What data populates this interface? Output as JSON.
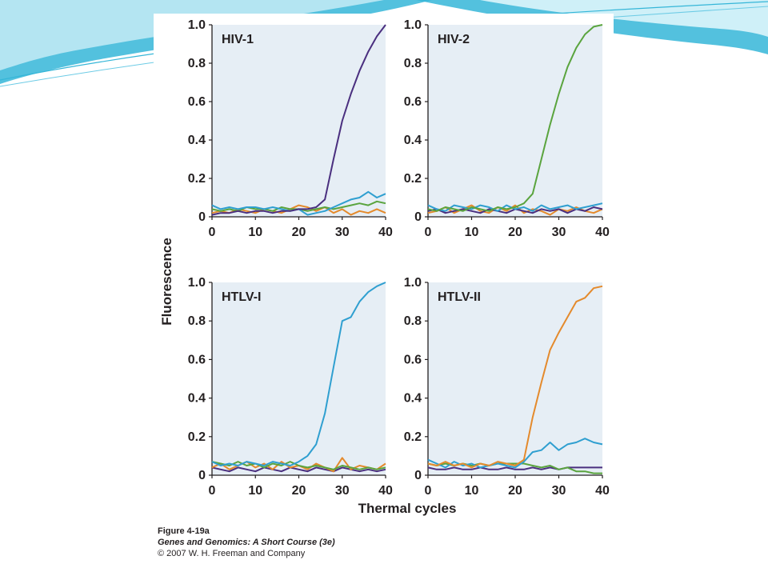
{
  "slide": {
    "caption": {
      "figure": "Figure 4-19a",
      "book": "Genes and Genomics: A Short Course (3e)",
      "copyright": "© 2007 W. H. Freeman and Company"
    }
  },
  "colors": {
    "panel_bg": "#e6eef5",
    "purple": "#4a2f7f",
    "green": "#5aa43e",
    "blue": "#2f9fd0",
    "orange": "#e48a2c",
    "deco_teal": "#35b6d8"
  },
  "chart_data": [
    {
      "type": "line",
      "title": "HIV-1",
      "xlabel": "Thermal cycles",
      "ylabel": "Fluorescence",
      "xlim": [
        0,
        40
      ],
      "ylim": [
        0,
        1.0
      ],
      "xticks": [
        "0",
        "10",
        "20",
        "30",
        "40"
      ],
      "yticks": [
        "0",
        "0.2",
        "0.4",
        "0.6",
        "0.8",
        "1.0"
      ],
      "series": [
        {
          "color": "purple",
          "x": [
            0,
            2,
            4,
            6,
            8,
            10,
            12,
            14,
            16,
            18,
            20,
            22,
            24,
            26,
            28,
            30,
            32,
            34,
            36,
            38,
            40
          ],
          "y": [
            0.01,
            0.02,
            0.02,
            0.03,
            0.02,
            0.03,
            0.03,
            0.02,
            0.03,
            0.03,
            0.04,
            0.04,
            0.05,
            0.09,
            0.3,
            0.5,
            0.64,
            0.76,
            0.86,
            0.94,
            1.0
          ]
        },
        {
          "color": "blue",
          "x": [
            0,
            2,
            4,
            6,
            8,
            10,
            12,
            14,
            16,
            18,
            20,
            22,
            24,
            26,
            28,
            30,
            32,
            34,
            36,
            38,
            40
          ],
          "y": [
            0.06,
            0.04,
            0.05,
            0.04,
            0.05,
            0.05,
            0.04,
            0.05,
            0.04,
            0.03,
            0.04,
            0.01,
            0.02,
            0.03,
            0.05,
            0.07,
            0.09,
            0.1,
            0.13,
            0.1,
            0.12
          ]
        },
        {
          "color": "green",
          "x": [
            0,
            2,
            4,
            6,
            8,
            10,
            12,
            14,
            16,
            18,
            20,
            22,
            24,
            26,
            28,
            30,
            32,
            34,
            36,
            38,
            40
          ],
          "y": [
            0.04,
            0.03,
            0.04,
            0.03,
            0.05,
            0.04,
            0.04,
            0.03,
            0.05,
            0.04,
            0.04,
            0.03,
            0.04,
            0.05,
            0.04,
            0.05,
            0.06,
            0.07,
            0.06,
            0.08,
            0.07
          ]
        },
        {
          "color": "orange",
          "x": [
            0,
            2,
            4,
            6,
            8,
            10,
            12,
            14,
            16,
            18,
            20,
            22,
            24,
            26,
            28,
            30,
            32,
            34,
            36,
            38,
            40
          ],
          "y": [
            0.02,
            0.03,
            0.02,
            0.04,
            0.03,
            0.02,
            0.04,
            0.03,
            0.02,
            0.04,
            0.06,
            0.05,
            0.03,
            0.05,
            0.02,
            0.04,
            0.01,
            0.03,
            0.02,
            0.04,
            0.02
          ]
        }
      ]
    },
    {
      "type": "line",
      "title": "HIV-2",
      "xlabel": "Thermal cycles",
      "ylabel": "Fluorescence",
      "xlim": [
        0,
        40
      ],
      "ylim": [
        0,
        1.0
      ],
      "xticks": [
        "0",
        "10",
        "20",
        "30",
        "40"
      ],
      "yticks": [
        "0",
        "0.2",
        "0.4",
        "0.6",
        "0.8",
        "1.0"
      ],
      "series": [
        {
          "color": "green",
          "x": [
            0,
            2,
            4,
            6,
            8,
            10,
            12,
            14,
            16,
            18,
            20,
            22,
            24,
            26,
            28,
            30,
            32,
            34,
            36,
            38,
            40
          ],
          "y": [
            0.04,
            0.03,
            0.05,
            0.04,
            0.03,
            0.05,
            0.04,
            0.03,
            0.05,
            0.04,
            0.05,
            0.07,
            0.12,
            0.3,
            0.48,
            0.64,
            0.78,
            0.88,
            0.95,
            0.99,
            1.0
          ]
        },
        {
          "color": "blue",
          "x": [
            0,
            2,
            4,
            6,
            8,
            10,
            12,
            14,
            16,
            18,
            20,
            22,
            24,
            26,
            28,
            30,
            32,
            34,
            36,
            38,
            40
          ],
          "y": [
            0.06,
            0.04,
            0.03,
            0.06,
            0.05,
            0.04,
            0.06,
            0.05,
            0.03,
            0.06,
            0.04,
            0.05,
            0.03,
            0.06,
            0.04,
            0.05,
            0.06,
            0.04,
            0.05,
            0.06,
            0.07
          ]
        },
        {
          "color": "purple",
          "x": [
            0,
            2,
            4,
            6,
            8,
            10,
            12,
            14,
            16,
            18,
            20,
            22,
            24,
            26,
            28,
            30,
            32,
            34,
            36,
            38,
            40
          ],
          "y": [
            0.03,
            0.04,
            0.02,
            0.03,
            0.04,
            0.03,
            0.02,
            0.04,
            0.03,
            0.02,
            0.04,
            0.03,
            0.02,
            0.04,
            0.03,
            0.04,
            0.02,
            0.04,
            0.03,
            0.05,
            0.04
          ]
        },
        {
          "color": "orange",
          "x": [
            0,
            2,
            4,
            6,
            8,
            10,
            12,
            14,
            16,
            18,
            20,
            22,
            24,
            26,
            28,
            30,
            32,
            34,
            36,
            38,
            40
          ],
          "y": [
            0.02,
            0.03,
            0.05,
            0.02,
            0.04,
            0.06,
            0.03,
            0.02,
            0.05,
            0.03,
            0.06,
            0.02,
            0.04,
            0.03,
            0.01,
            0.04,
            0.03,
            0.05,
            0.03,
            0.02,
            0.04
          ]
        }
      ]
    },
    {
      "type": "line",
      "title": "HTLV-I",
      "xlabel": "Thermal cycles",
      "ylabel": "Fluorescence",
      "xlim": [
        0,
        40
      ],
      "ylim": [
        0,
        1.0
      ],
      "xticks": [
        "0",
        "10",
        "20",
        "30",
        "40"
      ],
      "yticks": [
        "0",
        "0.2",
        "0.4",
        "0.6",
        "0.8",
        "1.0"
      ],
      "series": [
        {
          "color": "blue",
          "x": [
            0,
            2,
            4,
            6,
            8,
            10,
            12,
            14,
            16,
            18,
            20,
            22,
            24,
            26,
            28,
            30,
            32,
            34,
            36,
            38,
            40
          ],
          "y": [
            0.07,
            0.05,
            0.06,
            0.05,
            0.07,
            0.06,
            0.05,
            0.07,
            0.06,
            0.05,
            0.07,
            0.1,
            0.16,
            0.32,
            0.56,
            0.8,
            0.82,
            0.9,
            0.95,
            0.98,
            1.0
          ]
        },
        {
          "color": "green",
          "x": [
            0,
            2,
            4,
            6,
            8,
            10,
            12,
            14,
            16,
            18,
            20,
            22,
            24,
            26,
            28,
            30,
            32,
            34,
            36,
            38,
            40
          ],
          "y": [
            0.07,
            0.06,
            0.05,
            0.07,
            0.05,
            0.06,
            0.04,
            0.06,
            0.05,
            0.07,
            0.05,
            0.04,
            0.05,
            0.04,
            0.03,
            0.05,
            0.04,
            0.03,
            0.04,
            0.03,
            0.04
          ]
        },
        {
          "color": "orange",
          "x": [
            0,
            2,
            4,
            6,
            8,
            10,
            12,
            14,
            16,
            18,
            20,
            22,
            24,
            26,
            28,
            30,
            32,
            34,
            36,
            38,
            40
          ],
          "y": [
            0.04,
            0.06,
            0.03,
            0.05,
            0.07,
            0.04,
            0.06,
            0.03,
            0.07,
            0.04,
            0.05,
            0.03,
            0.06,
            0.04,
            0.02,
            0.09,
            0.03,
            0.05,
            0.04,
            0.03,
            0.06
          ]
        },
        {
          "color": "purple",
          "x": [
            0,
            2,
            4,
            6,
            8,
            10,
            12,
            14,
            16,
            18,
            20,
            22,
            24,
            26,
            28,
            30,
            32,
            34,
            36,
            38,
            40
          ],
          "y": [
            0.04,
            0.03,
            0.02,
            0.04,
            0.03,
            0.02,
            0.04,
            0.03,
            0.02,
            0.04,
            0.03,
            0.02,
            0.04,
            0.03,
            0.02,
            0.04,
            0.03,
            0.02,
            0.03,
            0.02,
            0.03
          ]
        }
      ]
    },
    {
      "type": "line",
      "title": "HTLV-II",
      "xlabel": "Thermal cycles",
      "ylabel": "Fluorescence",
      "xlim": [
        0,
        40
      ],
      "ylim": [
        0,
        1.0
      ],
      "xticks": [
        "0",
        "10",
        "20",
        "30",
        "40"
      ],
      "yticks": [
        "0",
        "0.2",
        "0.4",
        "0.6",
        "0.8",
        "1.0"
      ],
      "series": [
        {
          "color": "orange",
          "x": [
            0,
            2,
            4,
            6,
            8,
            10,
            12,
            14,
            16,
            18,
            20,
            22,
            24,
            26,
            28,
            30,
            32,
            34,
            36,
            38,
            40
          ],
          "y": [
            0.06,
            0.05,
            0.07,
            0.05,
            0.06,
            0.04,
            0.06,
            0.05,
            0.07,
            0.06,
            0.05,
            0.08,
            0.3,
            0.48,
            0.65,
            0.74,
            0.82,
            0.9,
            0.92,
            0.97,
            0.98
          ]
        },
        {
          "color": "blue",
          "x": [
            0,
            2,
            4,
            6,
            8,
            10,
            12,
            14,
            16,
            18,
            20,
            22,
            24,
            26,
            28,
            30,
            32,
            34,
            36,
            38,
            40
          ],
          "y": [
            0.08,
            0.06,
            0.04,
            0.07,
            0.05,
            0.06,
            0.04,
            0.05,
            0.06,
            0.05,
            0.04,
            0.07,
            0.12,
            0.13,
            0.17,
            0.13,
            0.16,
            0.17,
            0.19,
            0.17,
            0.16
          ]
        },
        {
          "color": "green",
          "x": [
            0,
            2,
            4,
            6,
            8,
            10,
            12,
            14,
            16,
            18,
            20,
            22,
            24,
            26,
            28,
            30,
            32,
            34,
            36,
            38,
            40
          ],
          "y": [
            0.06,
            0.05,
            0.06,
            0.05,
            0.06,
            0.05,
            0.06,
            0.05,
            0.06,
            0.06,
            0.06,
            0.06,
            0.05,
            0.04,
            0.05,
            0.03,
            0.04,
            0.02,
            0.02,
            0.01,
            0.01
          ]
        },
        {
          "color": "purple",
          "x": [
            0,
            2,
            4,
            6,
            8,
            10,
            12,
            14,
            16,
            18,
            20,
            22,
            24,
            26,
            28,
            30,
            32,
            34,
            36,
            38,
            40
          ],
          "y": [
            0.04,
            0.03,
            0.03,
            0.04,
            0.03,
            0.03,
            0.04,
            0.03,
            0.03,
            0.04,
            0.03,
            0.03,
            0.04,
            0.03,
            0.04,
            0.03,
            0.04,
            0.04,
            0.04,
            0.04,
            0.04
          ]
        }
      ]
    }
  ]
}
